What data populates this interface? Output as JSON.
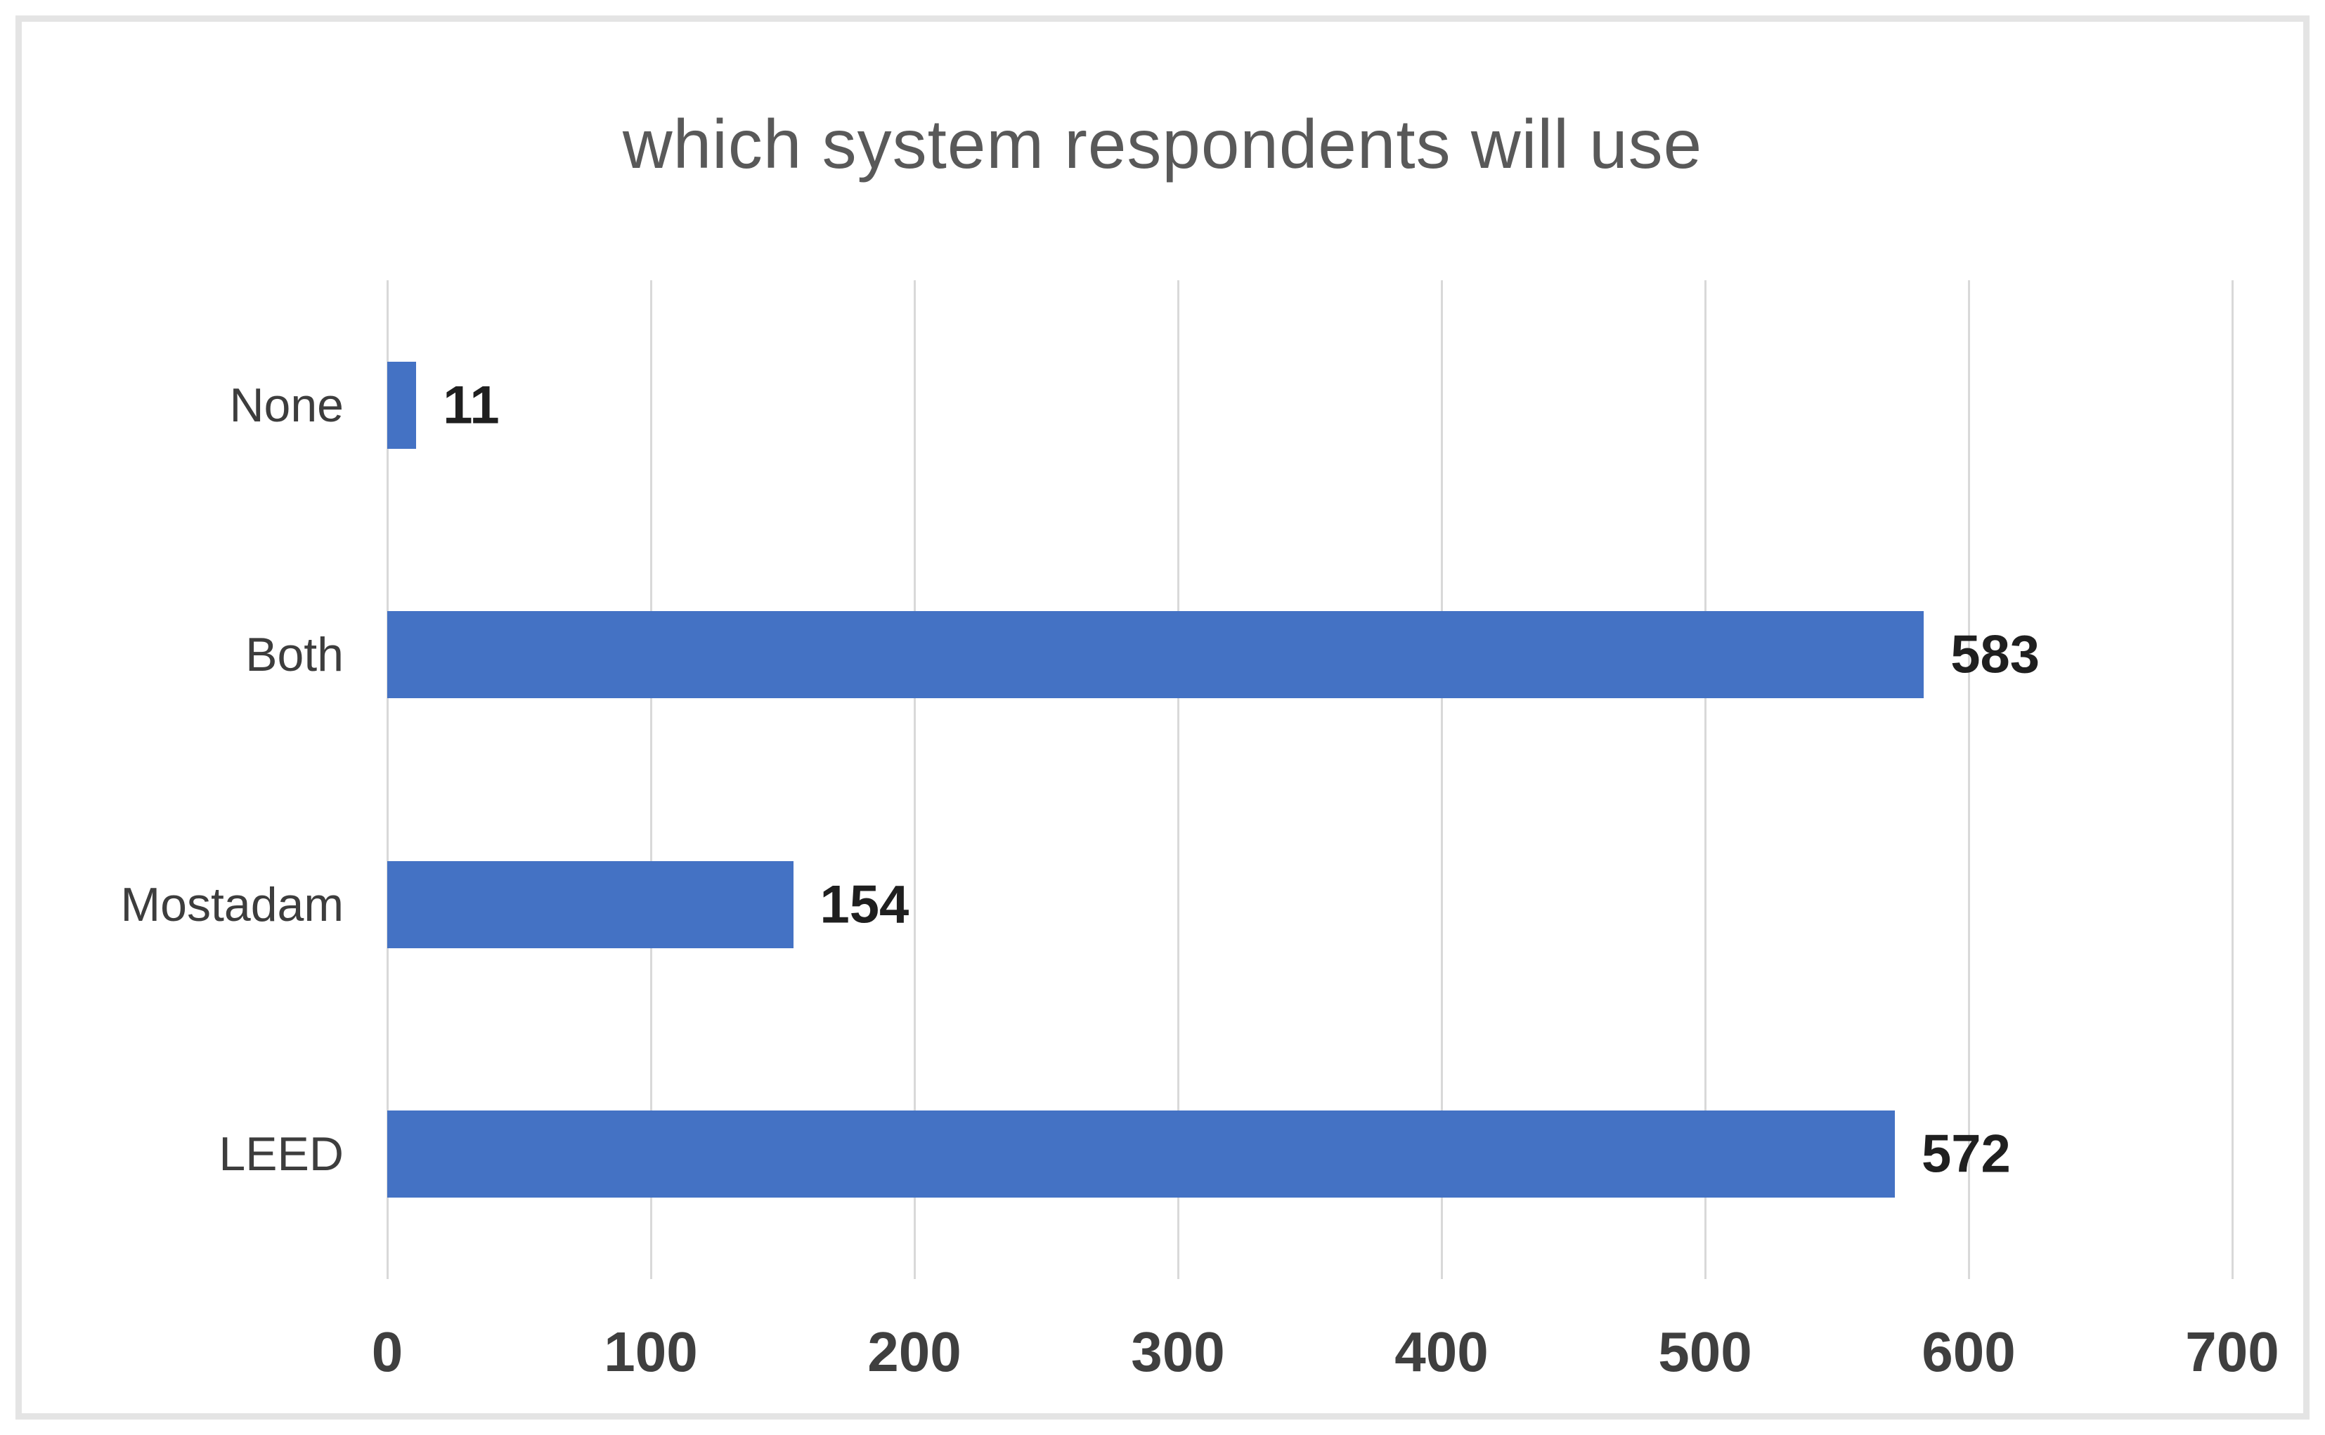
{
  "chart_data": {
    "type": "bar",
    "orientation": "horizontal",
    "title": "which system respondents will use",
    "categories": [
      "None",
      "Both",
      "Mostadam",
      "LEED"
    ],
    "values": [
      11,
      583,
      154,
      572
    ],
    "data_labels": [
      "11",
      "583",
      "154",
      "572"
    ],
    "x_ticks": [
      "0",
      "100",
      "200",
      "300",
      "400",
      "500",
      "600",
      "700"
    ],
    "xlim": [
      0,
      700
    ],
    "grid": true,
    "legend": "none",
    "xlabel": "",
    "ylabel": "",
    "colors": {
      "bar": "#4472C4",
      "gridline": "#d9d9d9",
      "title": "#595959",
      "frame_border": "#e4e4e4",
      "background": "#ffffff"
    }
  }
}
